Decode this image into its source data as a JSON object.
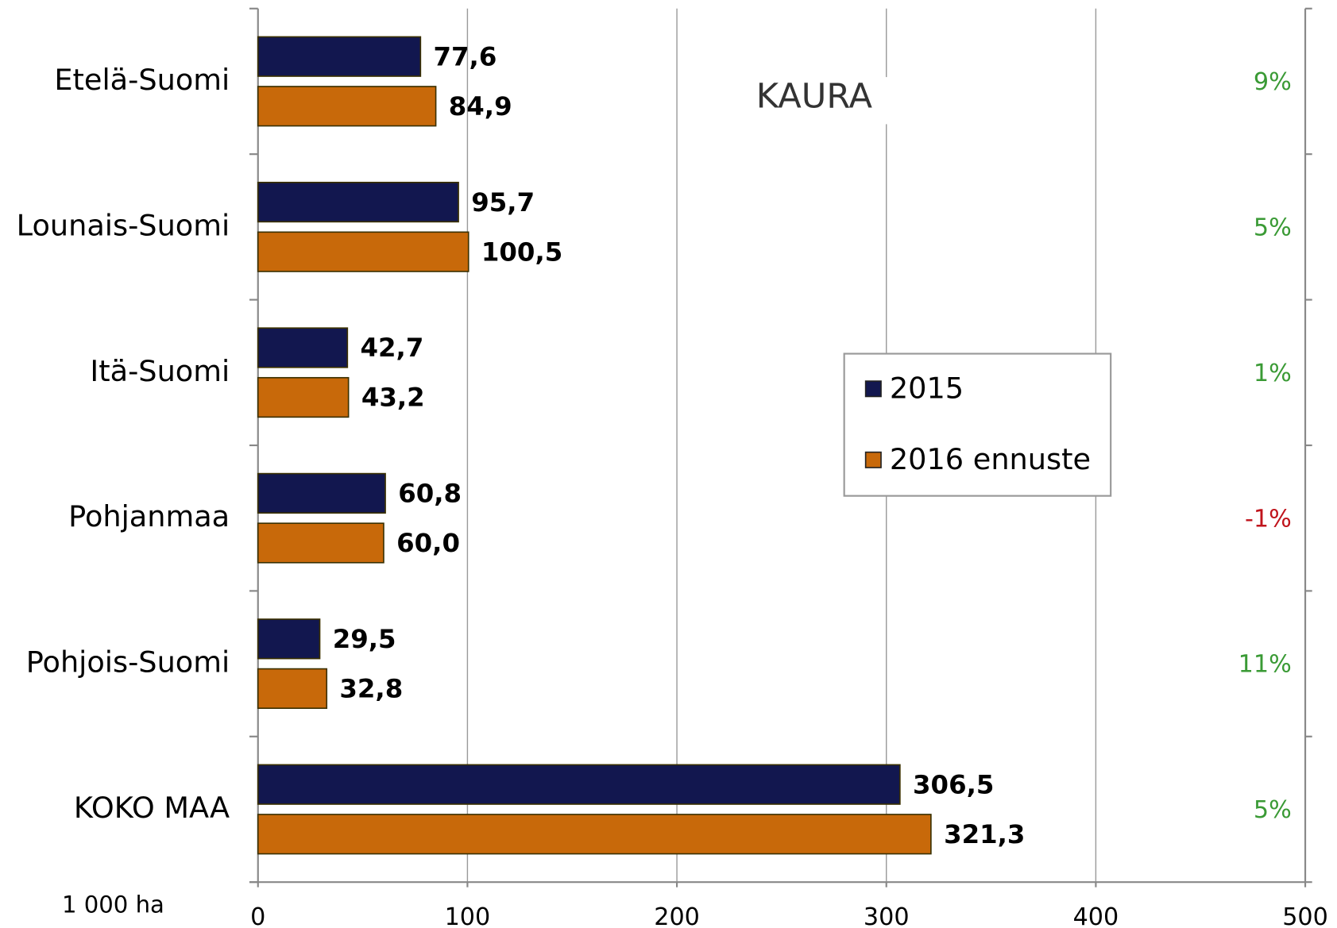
{
  "chart_data": {
    "type": "bar",
    "orientation": "horizontal",
    "title": "KAURA",
    "unit_label": "1 000 ha",
    "categories": [
      "Etelä-Suomi",
      "Lounais-Suomi",
      "Itä-Suomi",
      "Pohjanmaa",
      "Pohjois-Suomi",
      "KOKO MAA"
    ],
    "series": [
      {
        "name": "2015",
        "color": "#12174f",
        "values": [
          77.6,
          95.7,
          42.7,
          60.8,
          29.5,
          306.5
        ],
        "value_labels": [
          "77,6",
          "95,7",
          "42,7",
          "60,8",
          "29,5",
          "306,5"
        ]
      },
      {
        "name": "2016 ennuste",
        "color": "#c8690a",
        "values": [
          84.9,
          100.5,
          43.2,
          60.0,
          32.8,
          321.3
        ],
        "value_labels": [
          "84,9",
          "100,5",
          "43,2",
          "60,0",
          "32,8",
          "321,3"
        ]
      }
    ],
    "changes": {
      "values": [
        9,
        5,
        1,
        -1,
        11,
        5
      ],
      "value_labels": [
        "9%",
        "5%",
        "1%",
        "-1%",
        "11%",
        "5%"
      ],
      "positive_color": "#3a9a35",
      "negative_color": "#c0141c"
    },
    "xlim": [
      0,
      500
    ],
    "xticks": [
      0,
      100,
      200,
      300,
      400,
      500
    ],
    "grid": true
  }
}
